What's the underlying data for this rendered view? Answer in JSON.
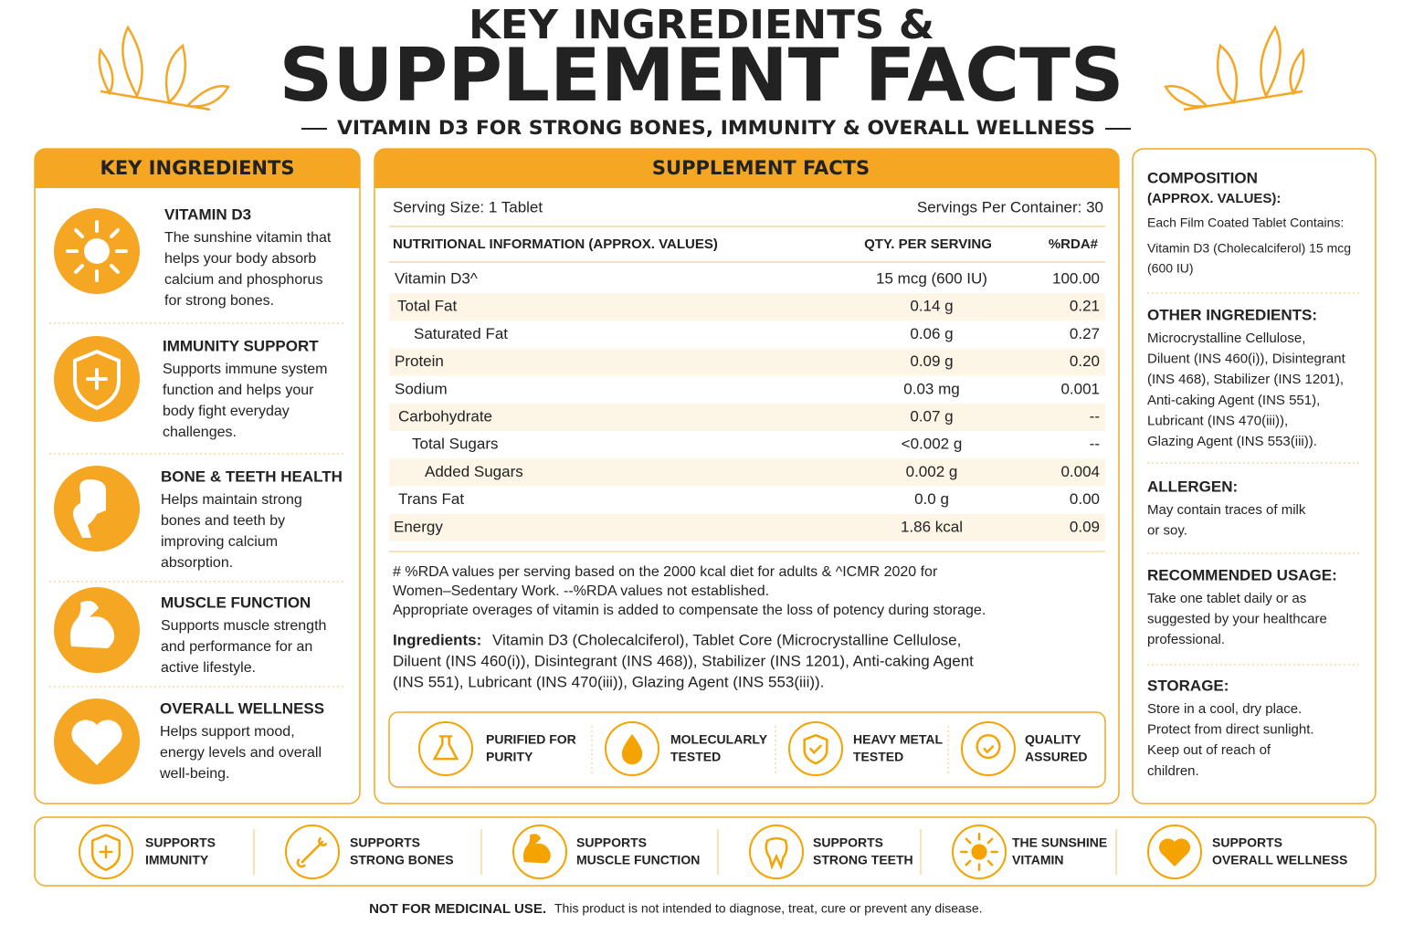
{
  "header": {
    "title_line1": "KEY INGREDIENTS &",
    "title_line2": "SUPPLEMENT FACTS",
    "subtitle": "VITAMIN D3 FOR STRONG BONES, IMMUNITY & OVERALL WELLNESS"
  },
  "key_ingredients": {
    "heading": "KEY INGREDIENTS",
    "items": [
      {
        "title": "VITAMIN D3",
        "lines": [
          "The sunshine vitamin that",
          "helps your body absorb",
          "calcium and phosphorus",
          "for strong bones."
        ]
      },
      {
        "title": "IMMUNITY SUPPORT",
        "lines": [
          "Supports immune system",
          "function and helps your",
          "body fight everyday",
          "challenges."
        ]
      },
      {
        "title": "BONE & TEETH HEALTH",
        "lines": [
          "Helps maintain strong",
          "bones and teeth by",
          "improving calcium",
          "absorption."
        ]
      },
      {
        "title": "MUSCLE FUNCTION",
        "lines": [
          "Supports muscle strength",
          "and performance for an",
          "active lifestyle."
        ]
      },
      {
        "title": "OVERALL WELLNESS",
        "lines": [
          "Helps support mood,",
          "energy levels and overall",
          "well-being."
        ]
      }
    ]
  },
  "supplement_facts": {
    "heading": "SUPPLEMENT FACTS",
    "serving_size": "Serving Size: 1 Tablet",
    "servings_per_container": "Servings Per Container: 30",
    "columns": [
      "NUTRITIONAL INFORMATION (APPROX. VALUES)",
      "QTY. PER SERVING",
      "%RDA#"
    ],
    "rows": [
      [
        "Vitamin D3^",
        "15 mcg (600 IU)",
        "100.00"
      ],
      [
        "Total Fat",
        "0.14 g",
        "0.21"
      ],
      [
        "Saturated Fat",
        "0.06 g",
        "0.27"
      ],
      [
        "Protein",
        "0.09 g",
        "0.20"
      ],
      [
        "Sodium",
        "0.03 mg",
        "0.001"
      ],
      [
        "Carbohydrate",
        "0.07 g",
        "--"
      ],
      [
        "Total Sugars",
        "<0.002 g",
        "--"
      ],
      [
        "Added Sugars",
        "0.002 g",
        "0.004"
      ],
      [
        "Trans Fat",
        "0.0 g",
        "0.00"
      ],
      [
        "Energy",
        "1.86 kcal",
        "0.09"
      ]
    ],
    "notes": [
      "# %RDA values per serving based on the 2000 kcal diet for adults & ^ICMR 2020 for",
      "Women–Sedentary Work. --%RDA values not established.",
      "Appropriate overages of vitamin is added to compensate the loss of potency during storage."
    ],
    "ingredients_label": "Ingredients:",
    "ingredients_lines": [
      "Vitamin D3 (Cholecalciferol), Tablet Core (Microcrystalline Cellulose,",
      "Diluent (INS 460(i)), Disintegrant (INS 468)), Stabilizer (INS 1201), Anti-caking Agent",
      "(INS 551), Lubricant (INS 470(iii)), Glazing Agent (INS 553(iii))."
    ],
    "badges": [
      [
        "PURIFIED FOR",
        "PURITY"
      ],
      [
        "MOLECULARLY",
        "TESTED"
      ],
      [
        "HEAVY METAL",
        "TESTED"
      ],
      [
        "QUALITY",
        "ASSURED"
      ]
    ]
  },
  "right_panel": {
    "composition_title": "COMPOSITION",
    "composition_subtitle": "(APPROX. VALUES):",
    "composition_lines": [
      "Each Film Coated Tablet Contains:",
      "Vitamin D3 (Cholecalciferol) 15 mcg",
      "(600 IU)"
    ],
    "sections": [
      {
        "title": "OTHER INGREDIENTS:",
        "lines": [
          "Microcrystalline Cellulose,",
          "Diluent (INS 460(i)), Disintegrant",
          "(INS 468), Stabilizer (INS 1201),",
          "Anti-caking Agent (INS 551),",
          "Lubricant (INS 470(iii)),",
          "Glazing Agent (INS 553(iii))."
        ]
      },
      {
        "title": "ALLERGEN:",
        "lines": [
          "May contain traces of milk",
          "or soy."
        ]
      },
      {
        "title": "RECOMMENDED USAGE:",
        "lines": [
          "Take one tablet daily or as",
          "suggested by your healthcare",
          "professional."
        ]
      },
      {
        "title": "STORAGE:",
        "lines": [
          "Store in a cool, dry place.",
          "Protect from direct sunlight.",
          "Keep out of reach of",
          "children."
        ]
      }
    ]
  },
  "bottom_strip": [
    [
      "SUPPORTS",
      "IMMUNITY"
    ],
    [
      "SUPPORTS",
      "STRONG BONES"
    ],
    [
      "SUPPORTS",
      "MUSCLE FUNCTION"
    ],
    [
      "SUPPORTS",
      "STRONG TEETH"
    ],
    [
      "THE SUNSHINE",
      "VITAMIN"
    ],
    [
      "SUPPORTS",
      "OVERALL WELLNESS"
    ]
  ],
  "footer": {
    "label": "NOT FOR MEDICINAL USE.",
    "text": "This product is not intended to diagnose, treat, cure or prevent any disease."
  }
}
